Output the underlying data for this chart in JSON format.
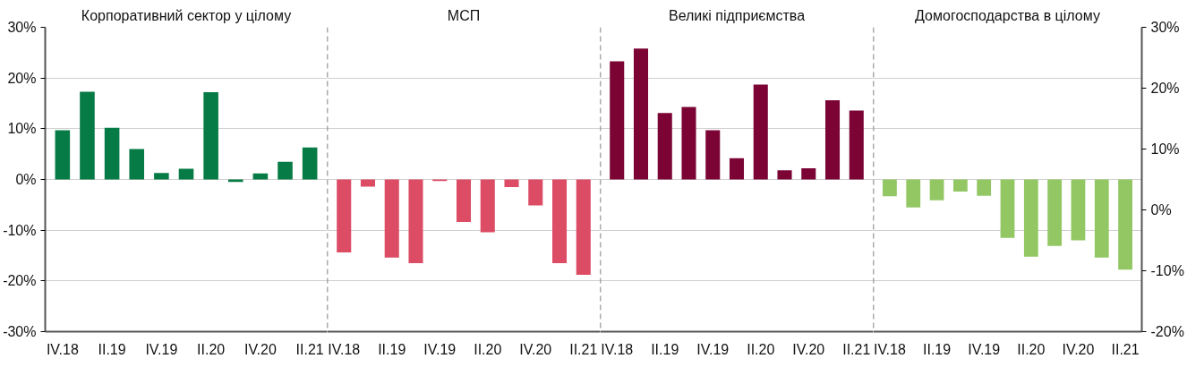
{
  "chart_data": [
    {
      "type": "bar",
      "title": "Корпоративний сектор у цілому",
      "categories": [
        "IV.18",
        null,
        "II.19",
        null,
        "IV.19",
        null,
        "II.20",
        null,
        "IV.20",
        null,
        "II.21"
      ],
      "series": [
        {
          "color": "#077b45",
          "values": [
            9.7,
            17.3,
            10.2,
            6.0,
            1.3,
            2.1,
            17.2,
            -0.5,
            1.2,
            3.5,
            6.3
          ]
        }
      ],
      "ylim": [
        -30,
        30
      ],
      "yticks": [
        {
          "value": -30,
          "label": "-30%"
        },
        {
          "value": -20,
          "label": "-20%"
        },
        {
          "value": -10,
          "label": "-10%"
        },
        {
          "value": 0,
          "label": "0%"
        },
        {
          "value": 10,
          "label": "10%"
        },
        {
          "value": 20,
          "label": "20%"
        },
        {
          "value": 30,
          "label": "30%"
        }
      ],
      "grid": "y"
    },
    {
      "type": "bar",
      "title": "МСП",
      "categories": [
        "IV.18",
        null,
        "II.19",
        null,
        "IV.19",
        null,
        "II.20",
        null,
        "IV.20",
        null,
        "II.21"
      ],
      "series": [
        {
          "color": "#dc4c65",
          "values": [
            -14.4,
            -1.4,
            -15.4,
            -16.5,
            -0.3,
            -8.4,
            -10.4,
            -1.5,
            -5.1,
            -16.5,
            -18.8
          ]
        }
      ],
      "ylim": [
        -30,
        30
      ],
      "yticks": [
        -30,
        -20,
        -10,
        0,
        10,
        20,
        30
      ],
      "grid": "y",
      "tick_labels": "x"
    },
    {
      "type": "bar",
      "title": "Великі підприємства",
      "categories": [
        "IV.18",
        null,
        "II.19",
        null,
        "IV.19",
        null,
        "II.20",
        null,
        "IV.20",
        null,
        "II.21"
      ],
      "series": [
        {
          "color": "#7b0434",
          "values": [
            23.3,
            25.8,
            13.1,
            14.3,
            9.7,
            4.2,
            18.7,
            1.8,
            2.2,
            15.6,
            13.6
          ]
        }
      ],
      "ylim": [
        -30,
        30
      ],
      "yticks": [
        -30,
        -20,
        -10,
        0,
        10,
        20,
        30
      ],
      "grid": "y",
      "tick_labels": "x"
    },
    {
      "type": "bar",
      "title": "Домогосподарства в цілому",
      "categories": [
        "IV.18",
        null,
        "II.19",
        null,
        "IV.19",
        null,
        "II.20",
        null,
        "IV.20",
        null,
        "II.21"
      ],
      "series": [
        {
          "color": "#92c764",
          "values": [
            -3.3,
            -5.5,
            -4.1,
            -2.4,
            -3.2,
            -11.5,
            -15.2,
            -13.1,
            -12.0,
            -15.4,
            -17.8
          ]
        }
      ],
      "ylim": [
        -30,
        30
      ],
      "yticks": [
        -30,
        -20,
        -10,
        0,
        10,
        20,
        30
      ],
      "grid": "y",
      "tick_labels": "x",
      "y2lim": [
        -20,
        30
      ],
      "y2ticks": [
        {
          "value": -20,
          "label": "-20%"
        },
        {
          "value": -10,
          "label": "-10%"
        },
        {
          "value": 0,
          "label": "0%"
        },
        {
          "value": 10,
          "label": "10%"
        },
        {
          "value": 20,
          "label": "20%"
        },
        {
          "value": 30,
          "label": "30%"
        }
      ]
    }
  ]
}
